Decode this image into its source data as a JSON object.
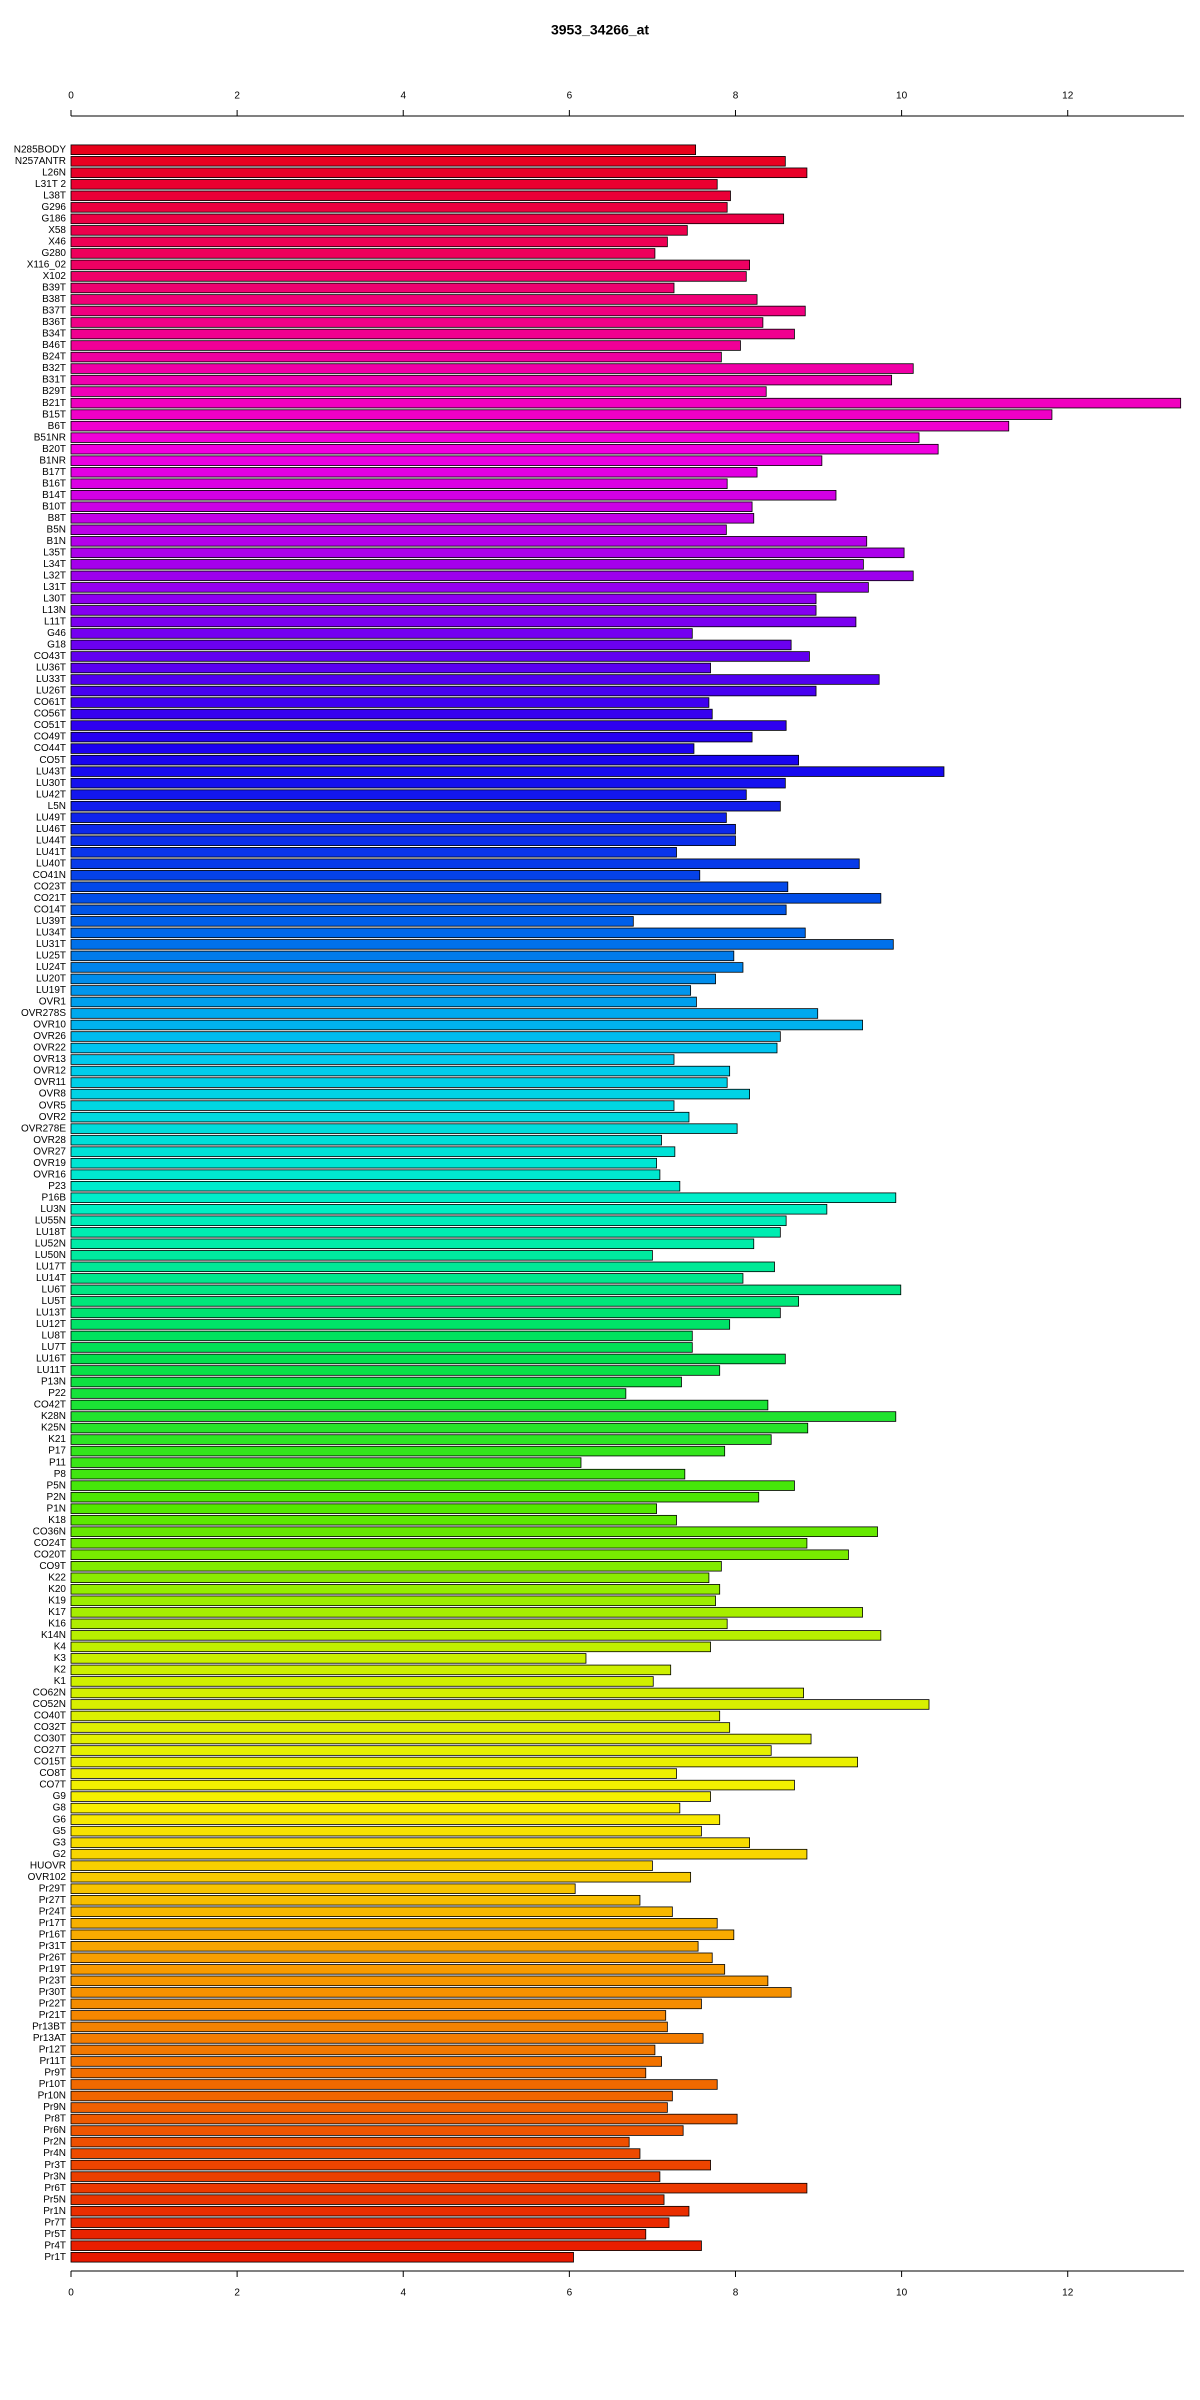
{
  "chart_data": {
    "type": "barh",
    "title": "3953_34266_at",
    "categories": [
      "N285BODY",
      "N257ANTR",
      "L26N",
      "L31T 2",
      "L38T",
      "G296",
      "G186",
      "X58",
      "X46",
      "G280",
      "X116_02",
      "X102",
      "B39T",
      "B38T",
      "B37T",
      "B36T",
      "B34T",
      "B46T",
      "B24T",
      "B32T",
      "B31T",
      "B29T",
      "B21T",
      "B15T",
      "B6T",
      "B51NR",
      "B20T",
      "B1NR",
      "B17T",
      "B16T",
      "B14T",
      "B10T",
      "B8T",
      "B5N",
      "B1N",
      "L35T",
      "L34T",
      "L32T",
      "L31T",
      "L30T",
      "L13N",
      "L11T",
      "G46",
      "G18",
      "CO43T",
      "LU36T",
      "LU33T",
      "LU26T",
      "CO61T",
      "CO56T",
      "CO51T",
      "CO49T",
      "CO44T",
      "CO5T",
      "LU43T",
      "LU30T",
      "LU42T",
      "L5N",
      "LU49T",
      "LU46T",
      "LU44T",
      "LU41T",
      "LU40T",
      "CO41N",
      "CO23T",
      "CO21T",
      "CO14T",
      "LU39T",
      "LU34T",
      "LU31T",
      "LU25T",
      "LU24T",
      "LU20T",
      "LU19T",
      "OVR1",
      "OVR278S",
      "OVR10",
      "OVR26",
      "OVR22",
      "OVR13",
      "OVR12",
      "OVR11",
      "OVR8",
      "OVR5",
      "OVR2",
      "OVR278E",
      "OVR28",
      "OVR27",
      "OVR19",
      "OVR16",
      "P23",
      "P16B",
      "LU3N",
      "LU55N",
      "LU18T",
      "LU52N",
      "LU50N",
      "LU17T",
      "LU14T",
      "LU6T",
      "LU5T",
      "LU13T",
      "LU12T",
      "LU8T",
      "LU7T",
      "LU16T",
      "LU11T",
      "P13N",
      "P22",
      "CO42T",
      "K28N",
      "K25N",
      "K21",
      "P17",
      "P11",
      "P8",
      "P5N",
      "P2N",
      "P1N",
      "K18",
      "CO36N",
      "CO24T",
      "CO20T",
      "CO9T",
      "K22",
      "K20",
      "K19",
      "K17",
      "K16",
      "K14N",
      "K4",
      "K3",
      "K2",
      "K1",
      "CO62N",
      "CO52N",
      "CO40T",
      "CO32T",
      "CO30T",
      "CO27T",
      "CO15T",
      "CO8T",
      "CO7T",
      "G9",
      "G8",
      "G6",
      "G5",
      "G3",
      "G2",
      "HUOVR",
      "OVR102",
      "Pr29T",
      "Pr27T",
      "Pr24T",
      "Pr17T",
      "Pr16T",
      "Pr31T",
      "Pr26T",
      "Pr19T",
      "Pr23T",
      "Pr30T",
      "Pr22T",
      "Pr21T",
      "Pr13BT",
      "Pr13AT",
      "Pr12T",
      "Pr11T",
      "Pr9T",
      "Pr10T",
      "Pr10N",
      "Pr9N",
      "Pr8T",
      "Pr6N",
      "Pr2N",
      "Pr4N",
      "Pr3T",
      "Pr3N",
      "Pr6T",
      "Pr5N",
      "Pr1N",
      "Pr7T",
      "Pr5T",
      "Pr4T",
      "Pr1T"
    ],
    "values": [
      7.52,
      8.6,
      8.86,
      7.78,
      7.94,
      7.9,
      8.58,
      7.42,
      7.18,
      7.03,
      8.17,
      8.13,
      7.26,
      8.26,
      8.84,
      8.33,
      8.71,
      8.06,
      7.83,
      10.14,
      9.88,
      8.37,
      13.36,
      11.81,
      11.29,
      10.21,
      10.44,
      9.04,
      8.26,
      7.9,
      9.21,
      8.2,
      8.22,
      7.89,
      9.58,
      10.03,
      9.54,
      10.14,
      9.6,
      8.97,
      8.97,
      9.45,
      7.48,
      8.67,
      8.89,
      7.7,
      9.73,
      8.97,
      7.68,
      7.72,
      8.61,
      8.2,
      7.5,
      8.76,
      10.51,
      8.6,
      8.13,
      8.54,
      7.89,
      8.0,
      8.0,
      7.29,
      9.49,
      7.57,
      8.63,
      9.75,
      8.61,
      6.77,
      8.84,
      9.9,
      7.98,
      8.09,
      7.76,
      7.46,
      7.53,
      8.99,
      9.53,
      8.54,
      8.5,
      7.26,
      7.93,
      7.9,
      8.17,
      7.26,
      7.44,
      8.02,
      7.11,
      7.27,
      7.05,
      7.09,
      7.33,
      9.93,
      9.1,
      8.61,
      8.54,
      8.22,
      7.0,
      8.47,
      8.09,
      9.99,
      8.76,
      8.54,
      7.93,
      7.48,
      7.48,
      8.6,
      7.81,
      7.35,
      6.68,
      8.39,
      9.93,
      8.87,
      8.43,
      7.87,
      6.14,
      7.39,
      8.71,
      8.28,
      7.05,
      7.29,
      9.71,
      8.86,
      9.36,
      7.83,
      7.68,
      7.81,
      7.76,
      9.53,
      7.9,
      9.75,
      7.7,
      6.2,
      7.22,
      7.01,
      8.82,
      10.33,
      7.81,
      7.93,
      8.91,
      8.43,
      9.47,
      7.29,
      8.71,
      7.7,
      7.33,
      7.81,
      7.59,
      8.17,
      8.86,
      7.0,
      7.46,
      6.07,
      6.85,
      7.24,
      7.78,
      7.98,
      7.55,
      7.72,
      7.87,
      8.39,
      8.67,
      7.59,
      7.16,
      7.18,
      7.61,
      7.03,
      7.11,
      6.92,
      7.78,
      7.24,
      7.18,
      8.02,
      7.37,
      6.72,
      6.85,
      7.7,
      7.09,
      8.86,
      7.14,
      7.44,
      7.2,
      6.92,
      7.59,
      6.05
    ],
    "palette": [
      "#e8001a",
      "#f00078",
      "#f000e0",
      "#8c00f0",
      "#1a00f0",
      "#0050e8",
      "#00c8f0",
      "#00f0c8",
      "#00e050",
      "#50e800",
      "#c8f000",
      "#f8f000",
      "#f8a000",
      "#f06000",
      "#e81800"
    ],
    "xlim": [
      0,
      13.4
    ],
    "xticks": [
      0,
      2,
      4,
      6,
      8,
      10,
      12
    ]
  }
}
